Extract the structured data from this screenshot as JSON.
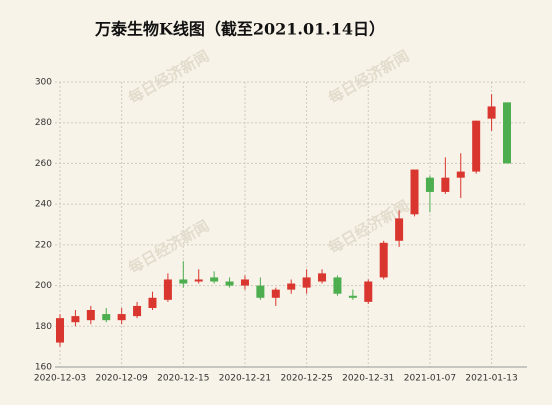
{
  "chart_data": {
    "type": "candlestick",
    "title": "万泰生物K线图（截至2021.01.14日）",
    "watermark": "每日经济新闻",
    "categories": [
      "2020-12-03",
      null,
      null,
      null,
      "2020-12-09",
      null,
      null,
      null,
      "2020-12-15",
      null,
      null,
      null,
      "2020-12-21",
      null,
      null,
      null,
      "2020-12-25",
      null,
      null,
      null,
      "2020-12-31",
      null,
      null,
      null,
      "2021-01-07",
      null,
      null,
      null,
      "2021-01-13",
      null
    ],
    "open": [
      172,
      182,
      183,
      186,
      183,
      185,
      189,
      193,
      203,
      202,
      204,
      202,
      200,
      200,
      194,
      198,
      199,
      202,
      204,
      195,
      192,
      204,
      222,
      235,
      253,
      246,
      253,
      256,
      282,
      290
    ],
    "high": [
      186,
      188,
      190,
      189,
      189,
      192,
      197,
      206,
      212,
      208,
      207,
      204,
      205,
      204,
      199,
      203,
      208,
      208,
      205,
      198,
      203,
      222,
      237,
      257,
      254,
      263,
      265,
      281,
      294,
      290
    ],
    "low": [
      170,
      180,
      181,
      182,
      181,
      184,
      188,
      192,
      199,
      201,
      201,
      199,
      198,
      193,
      190,
      196,
      196,
      201,
      195,
      193,
      191,
      203,
      219,
      234,
      236,
      245,
      243,
      255,
      276,
      260
    ],
    "close": [
      184,
      185,
      188,
      183,
      186,
      190,
      194,
      203,
      201,
      203,
      202,
      200,
      203,
      194,
      198,
      201,
      204,
      206,
      196,
      194,
      202,
      221,
      233,
      257,
      246,
      253,
      256,
      281,
      288,
      260
    ],
    "up_color": "#d9362f",
    "down_color": "#4cae4f",
    "ylim": [
      160,
      300
    ],
    "yticks": [
      160,
      180,
      200,
      220,
      240,
      260,
      280,
      300
    ],
    "grid": true
  }
}
